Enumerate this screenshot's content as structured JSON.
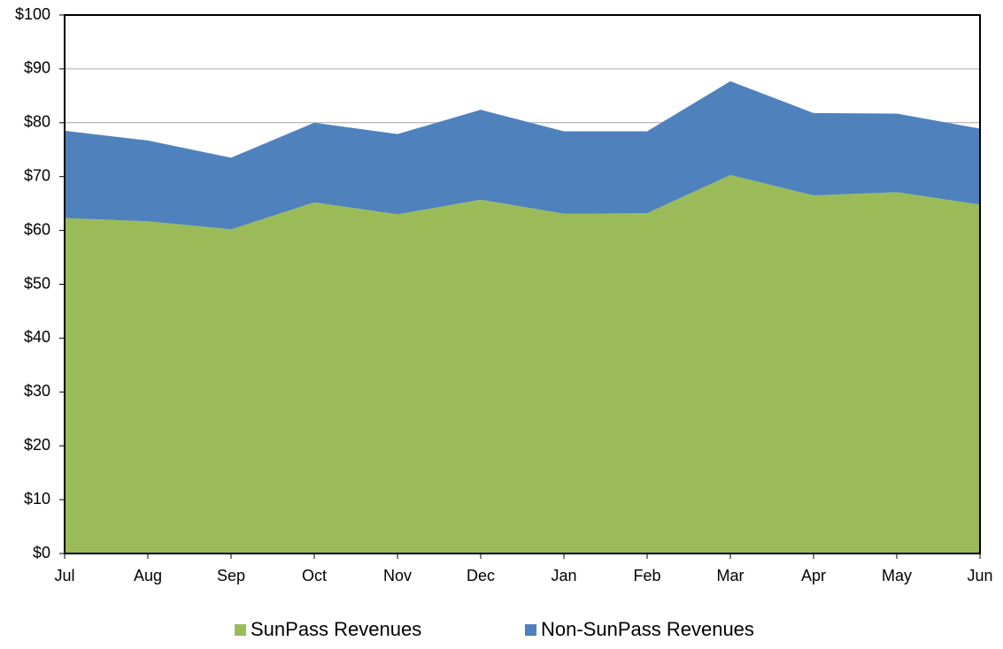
{
  "chart_data": {
    "type": "stacked_area",
    "categories": [
      "Jul",
      "Aug",
      "Sep",
      "Oct",
      "Nov",
      "Dec",
      "Jan",
      "Feb",
      "Mar",
      "Apr",
      "May",
      "Jun"
    ],
    "series": [
      {
        "name": "SunPass Revenues",
        "color": "#9bbb59",
        "values": [
          62.3,
          61.7,
          60.2,
          65.2,
          63.0,
          65.7,
          63.1,
          63.2,
          70.3,
          66.5,
          67.1,
          64.8
        ]
      },
      {
        "name": "Non-SunPass Revenues",
        "color": "#4f81bd",
        "values": [
          16.2,
          15.0,
          13.3,
          14.8,
          14.9,
          16.7,
          15.3,
          15.2,
          17.4,
          15.3,
          14.6,
          14.1
        ]
      }
    ],
    "ylim": [
      0,
      100
    ],
    "yticks": [
      {
        "value": 0,
        "label": "$0"
      },
      {
        "value": 10,
        "label": "$10"
      },
      {
        "value": 20,
        "label": "$20"
      },
      {
        "value": 30,
        "label": "$30"
      },
      {
        "value": 40,
        "label": "$40"
      },
      {
        "value": 50,
        "label": "$50"
      },
      {
        "value": 60,
        "label": "$60"
      },
      {
        "value": 70,
        "label": "$70"
      },
      {
        "value": 80,
        "label": "$80"
      },
      {
        "value": 90,
        "label": "$90"
      },
      {
        "value": 100,
        "label": "$100"
      }
    ],
    "grid": true,
    "legend": "bottom"
  }
}
